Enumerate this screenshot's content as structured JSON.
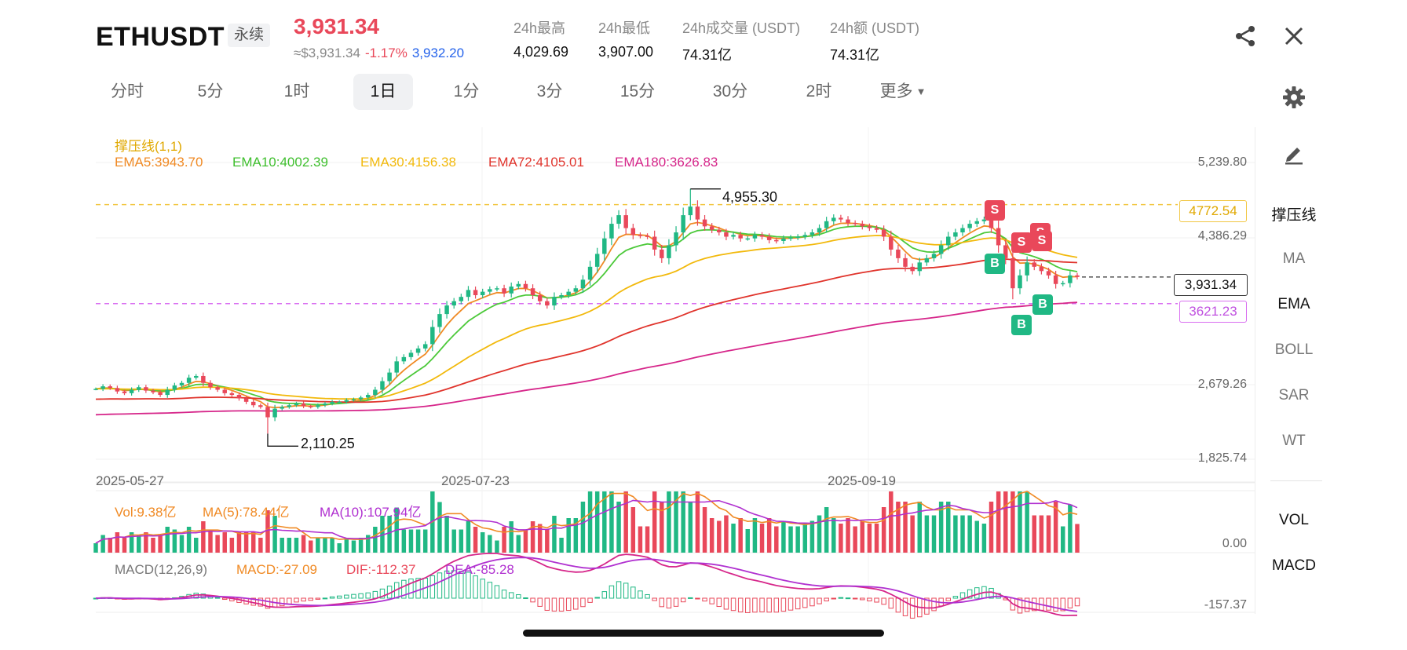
{
  "header": {
    "symbol": "ETHUSDT",
    "contract_type": "永续",
    "last_price": "3,931.34",
    "approx_price": "≈$3,931.34",
    "change_pct": "-1.17%",
    "mark_price": "3,932.20",
    "stats": [
      {
        "label": "24h最高",
        "value": "4,029.69"
      },
      {
        "label": "24h最低",
        "value": "3,907.00"
      },
      {
        "label": "24h成交量 (USDT)",
        "value": "74.31亿"
      },
      {
        "label": "24h额 (USDT)",
        "value": "74.31亿"
      }
    ],
    "icons": [
      "share-icon",
      "close-icon"
    ]
  },
  "tabs": [
    {
      "label": "分时",
      "active": false
    },
    {
      "label": "5分",
      "active": false
    },
    {
      "label": "1时",
      "active": false
    },
    {
      "label": "1日",
      "active": true
    },
    {
      "label": "1分",
      "active": false
    },
    {
      "label": "3分",
      "active": false
    },
    {
      "label": "15分",
      "active": false
    },
    {
      "label": "30分",
      "active": false
    },
    {
      "label": "2时",
      "active": false
    },
    {
      "label": "更多",
      "active": false
    }
  ],
  "legends": {
    "support_resistance": "撑压线(1,1)",
    "ema5": "EMA5:3943.70",
    "ema10": "EMA10:4002.39",
    "ema30": "EMA30:4156.38",
    "ema72": "EMA72:4105.01",
    "ema180": "EMA180:3626.83",
    "vol": "Vol:9.38亿",
    "vol_ma5": "MA(5):78.44亿",
    "vol_ma10": "MA(10):107.94亿",
    "macd_title": "MACD(12,26,9)",
    "macd": "MACD:-27.09",
    "dif": "DIF:-112.37",
    "dea": "DEA:-85.28"
  },
  "price_axis": [
    "5,239.80",
    "4,386.29",
    "2,679.26",
    "1,825.74"
  ],
  "vol_axis": "0.00",
  "macd_axis": "-157.37",
  "date_axis": [
    "2025-05-27",
    "2025-07-23",
    "2025-09-19"
  ],
  "resistance_price": "4772.54",
  "support_price": "3621.23",
  "current_price_tag": "3,931.34",
  "high_annotation": "4,955.30",
  "low_annotation": "2,110.25",
  "signals": {
    "sell": "S",
    "buy": "B"
  },
  "right_panel": {
    "items": [
      {
        "label": "撑压线",
        "active": true
      },
      {
        "label": "MA",
        "active": false
      },
      {
        "label": "EMA",
        "active": true
      },
      {
        "label": "BOLL",
        "active": false
      },
      {
        "label": "SAR",
        "active": false
      },
      {
        "label": "WT",
        "active": false
      }
    ],
    "sub_items": [
      {
        "label": "VOL",
        "active": true
      },
      {
        "label": "MACD",
        "active": true
      }
    ],
    "icons": [
      "settings-icon",
      "draw-pencil-icon"
    ]
  },
  "colors": {
    "up": "#20b884",
    "down": "#e9485a",
    "ema5": "#f08a24",
    "ema10": "#4cc93a",
    "ema30": "#f2b90c",
    "ema72": "#e0342c",
    "ema180": "#d6268a",
    "resistance": "#f2c744",
    "support": "#d96ef0",
    "dea": "#b030d0"
  },
  "chart_data": {
    "type": "candlestick",
    "interval": "1日",
    "x_range": [
      "2025-05-27",
      "2025-10-29"
    ],
    "price_axis_ticks": [
      1825.74,
      2679.26,
      4386.29,
      5239.8
    ],
    "close": [
      2630,
      2660,
      2640,
      2600,
      2580,
      2620,
      2650,
      2610,
      2590,
      2560,
      2620,
      2670,
      2700,
      2760,
      2780,
      2700,
      2650,
      2620,
      2580,
      2560,
      2520,
      2480,
      2440,
      2420,
      2300,
      2400,
      2420,
      2440,
      2460,
      2430,
      2420,
      2440,
      2460,
      2480,
      2480,
      2500,
      2510,
      2530,
      2560,
      2620,
      2720,
      2820,
      2950,
      3000,
      3050,
      3100,
      3150,
      3350,
      3500,
      3600,
      3650,
      3700,
      3780,
      3720,
      3760,
      3790,
      3800,
      3740,
      3820,
      3850,
      3800,
      3720,
      3650,
      3600,
      3700,
      3720,
      3760,
      3800,
      3900,
      4050,
      4200,
      4380,
      4550,
      4650,
      4500,
      4420,
      4410,
      4400,
      4250,
      4150,
      4300,
      4450,
      4650,
      4750,
      4600,
      4520,
      4480,
      4450,
      4400,
      4420,
      4380,
      4380,
      4420,
      4400,
      4360,
      4350,
      4380,
      4390,
      4400,
      4420,
      4450,
      4500,
      4580,
      4620,
      4600,
      4560,
      4550,
      4520,
      4500,
      4480,
      4400,
      4250,
      4150,
      4050,
      4000,
      4100,
      4150,
      4200,
      4300,
      4400,
      4450,
      4500,
      4550,
      4580,
      4600,
      4500,
      4300,
      4150,
      3800,
      3950,
      4100,
      4050,
      4000,
      3950,
      3850,
      3860,
      3950,
      3931.34
    ],
    "high": 4955.3,
    "low": 2110.25,
    "ema": {
      "EMA5": 3943.7,
      "EMA10": 4002.39,
      "EMA30": 4156.38,
      "EMA72": 4105.01,
      "EMA180": 3626.83
    },
    "support_resistance": {
      "resistance": 4772.54,
      "support": 3621.23
    },
    "volume": {
      "last": "9.38亿",
      "ma5": "78.44亿",
      "ma10": "107.94亿"
    },
    "macd": {
      "macd": -27.09,
      "dif": -112.37,
      "dea": -85.28,
      "axis_min": -157.37
    }
  }
}
